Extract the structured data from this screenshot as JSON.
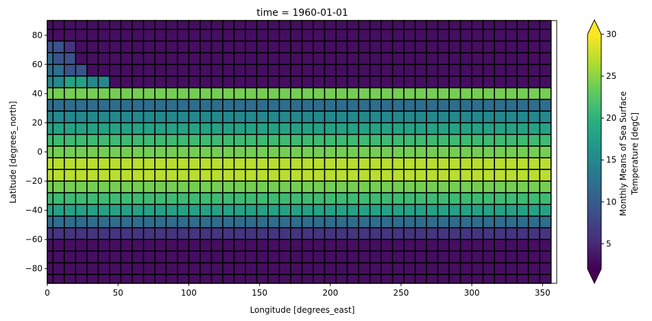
{
  "chart_data": {
    "type": "heatmap",
    "title": "time = 1960-01-01",
    "xlabel": "Longitude [degrees_east]",
    "ylabel": "Latitude [degrees_north]",
    "xlim": [
      0,
      360
    ],
    "ylim": [
      -90,
      90
    ],
    "x_ticks": [
      0,
      50,
      100,
      150,
      200,
      250,
      300,
      350
    ],
    "y_ticks": [
      -80,
      -60,
      -40,
      -20,
      0,
      20,
      40,
      60,
      80
    ],
    "cell_size_deg": [
      8,
      8
    ],
    "colormap": "viridis",
    "missing_color": "#ffffff",
    "edge_color": "#000000",
    "colorbar": {
      "label_lines": [
        "Monthly Means of Sea Surface",
        "Temperature [degC]"
      ],
      "vmin": 2,
      "vmax": 30,
      "ticks": [
        5,
        10,
        15,
        20,
        25,
        30
      ],
      "extend": "both"
    },
    "lat_rows_north_to_south": [
      88,
      80,
      72,
      64,
      56,
      48,
      40,
      32,
      24,
      16,
      8,
      0,
      -8,
      -16,
      -24,
      -32,
      -40,
      -48,
      -56,
      -64,
      -72,
      -80,
      -88
    ],
    "lon_columns": [
      0,
      8,
      16,
      24,
      32,
      40,
      48,
      56,
      64,
      72,
      80,
      88,
      96,
      104,
      112,
      120,
      128,
      136,
      144,
      152,
      160,
      168,
      176,
      184,
      192,
      200,
      208,
      216,
      224,
      232,
      240,
      248,
      256,
      264,
      272,
      280,
      288,
      296,
      304,
      312,
      320,
      328,
      336,
      344,
      352
    ],
    "sst_rows_north_to_south": [
      "111111111111111111111111111111111111111111111",
      "111111111111111111111111111111111111111111111",
      "332111111111111111111111111111111111111111111",
      "433111111111111111111111111111111111111111111",
      "443311111111111111111111111111111111111111111",
      "556655111111111111111111111111111111111111111",
      "888888888888888888888888888888888888888888888",
      "444444444444444444444444444444444444444444444",
      "555555555555555555555555555555555555555555555",
      "666666666666666666666666666666666666666666666",
      "777777777777777777777777777777777777777777777",
      "888888888888888888888888888888888888888888888",
      "999999999999999999999999999999999999999999999",
      "999999999999999999999999999999999999999999999",
      "888888888888888888888888888888888888888888888",
      "777777777777777777777777777777777777777777777",
      "666666666666666666666666666666666666666666666",
      "444444444444444444444444444444444444444444444",
      "222222222222222222222222222222222222222222222",
      "111111111111111111111111111111111111111111111",
      "111111111111111111111111111111111111111111111",
      "111111111111111111111111111111111111111111111",
      "111111111111111111111111111111111111111111111"
    ]
  }
}
